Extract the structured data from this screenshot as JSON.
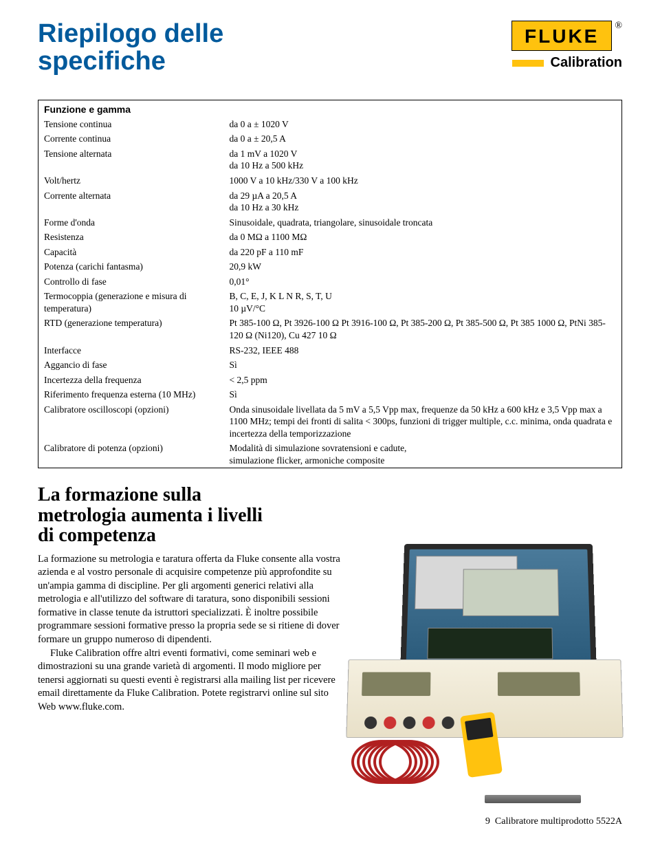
{
  "header": {
    "title_line1": "Riepilogo delle",
    "title_line2": "specifiche",
    "brand": "FLUKE",
    "registered": "®",
    "subbrand": "Calibration"
  },
  "table": {
    "heading": "Funzione e gamma",
    "rows": [
      {
        "label": "Tensione continua",
        "value": "da 0 a ± 1020 V"
      },
      {
        "label": "Corrente continua",
        "value": "da 0 a ± 20,5 A"
      },
      {
        "label": "Tensione alternata",
        "value": "da 1 mV a 1020 V\nda 10 Hz a 500 kHz"
      },
      {
        "label": "Volt/hertz",
        "value": "1000 V a 10 kHz/330 V a 100 kHz"
      },
      {
        "label": "Corrente alternata",
        "value": "da 29 µA a 20,5 A\nda 10 Hz a 30 kHz"
      },
      {
        "label": "Forme d'onda",
        "value": "Sinusoidale, quadrata, triangolare, sinusoidale troncata"
      },
      {
        "label": "Resistenza",
        "value": "da 0 MΩ a 1100 MΩ"
      },
      {
        "label": "Capacità",
        "value": "da 220 pF a 110 mF"
      },
      {
        "label": "Potenza (carichi fantasma)",
        "value": "20,9 kW"
      },
      {
        "label": "Controllo di fase",
        "value": "0,01°"
      },
      {
        "label": "Termocoppia (generazione e misura di temperatura)",
        "value": "B, C, E, J, K L N R, S, T, U\n10 µV/°C"
      },
      {
        "label": "RTD (generazione temperatura)",
        "value": "Pt 385-100 Ω, Pt 3926-100 Ω Pt 3916-100 Ω, Pt 385-200 Ω, Pt 385-500 Ω, Pt 385 1000 Ω, PtNi 385-120 Ω (Ni120), Cu 427 10 Ω"
      },
      {
        "label": "Interfacce",
        "value": "RS-232, IEEE 488"
      },
      {
        "label": "Aggancio di fase",
        "value": "Sì"
      },
      {
        "label": "Incertezza della frequenza",
        "value": "< 2,5 ppm"
      },
      {
        "label": "Riferimento frequenza esterna (10 MHz)",
        "value": "Sì"
      },
      {
        "label": "Calibratore oscilloscopi (opzioni)",
        "value": "Onda sinusoidale livellata da 5 mV a 5,5 Vpp max, frequenze da 50 kHz a 600 kHz e 3,5 Vpp max a 1100 MHz; tempi dei fronti di salita < 300ps, funzioni di trigger multiple, c.c. minima, onda quadrata e incertezza della temporizzazione"
      },
      {
        "label": "Calibratore di potenza (opzioni)",
        "value": "Modalità di simulazione sovratensioni e cadute,\nsimulazione flicker, armoniche composite"
      }
    ]
  },
  "section": {
    "heading_l1": "La formazione sulla",
    "heading_l2": "metrologia aumenta i livelli",
    "heading_l3": "di competenza",
    "p1": "La formazione su metrologia e taratura offerta da Fluke consente alla vostra azienda e al vostro personale di acquisire competenze più approfondite su un'ampia gamma di discipline. Per gli argomenti generici relativi alla metrologia e all'utilizzo del software di taratura, sono disponibili sessioni formative in classe tenute da istruttori specializzati. È inoltre possibile programmare sessioni formative presso la propria sede se si ritiene di dover formare un gruppo numeroso di dipendenti.",
    "p2": "Fluke Calibration offre altri eventi formativi, come seminari web e dimostrazioni su una grande varietà di argomenti. Il modo migliore per tenersi aggiornati su questi eventi è registrarsi alla mailing list per ricevere email direttamente da Fluke Calibration. Potete registrarvi online sul sito Web www.fluke.com."
  },
  "footer": {
    "page_no": "9",
    "product": "Calibratore multiprodotto 5522A"
  },
  "colors": {
    "title_blue": "#005a9c",
    "fluke_yellow": "#ffc20e",
    "coil_red": "#b02020"
  }
}
